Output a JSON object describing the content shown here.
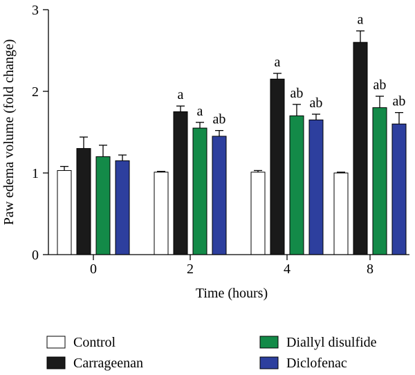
{
  "chart_data": {
    "type": "bar",
    "xlabel": "Time (hours)",
    "ylabel": "Paw edema volume (fold change)",
    "ylim": [
      0,
      3
    ],
    "yticks": [
      "0",
      "1",
      "2",
      "3"
    ],
    "categories": [
      "0",
      "2",
      "4",
      "8"
    ],
    "grid": false,
    "legend_position": "bottom",
    "series": [
      {
        "name": "Control",
        "color": "#ffffff",
        "values": [
          1.03,
          1.01,
          1.01,
          1.0
        ],
        "errors": [
          0.05,
          0.01,
          0.02,
          0.01
        ],
        "labels": [
          "",
          "",
          "",
          ""
        ]
      },
      {
        "name": "Carrageenan",
        "color": "#1a1a1a",
        "values": [
          1.3,
          1.75,
          2.15,
          2.6
        ],
        "errors": [
          0.14,
          0.07,
          0.07,
          0.14
        ],
        "labels": [
          "",
          "a",
          "a",
          "a"
        ]
      },
      {
        "name": "Diallyl disulfide",
        "color": "#138a48",
        "values": [
          1.2,
          1.55,
          1.7,
          1.8
        ],
        "errors": [
          0.14,
          0.07,
          0.14,
          0.14
        ],
        "labels": [
          "",
          "a",
          "ab",
          "ab"
        ]
      },
      {
        "name": "Diclofenac",
        "color": "#2d3f9e",
        "values": [
          1.15,
          1.45,
          1.65,
          1.6
        ],
        "errors": [
          0.07,
          0.07,
          0.07,
          0.14
        ],
        "labels": [
          "",
          "ab",
          "ab",
          "ab"
        ]
      }
    ]
  }
}
